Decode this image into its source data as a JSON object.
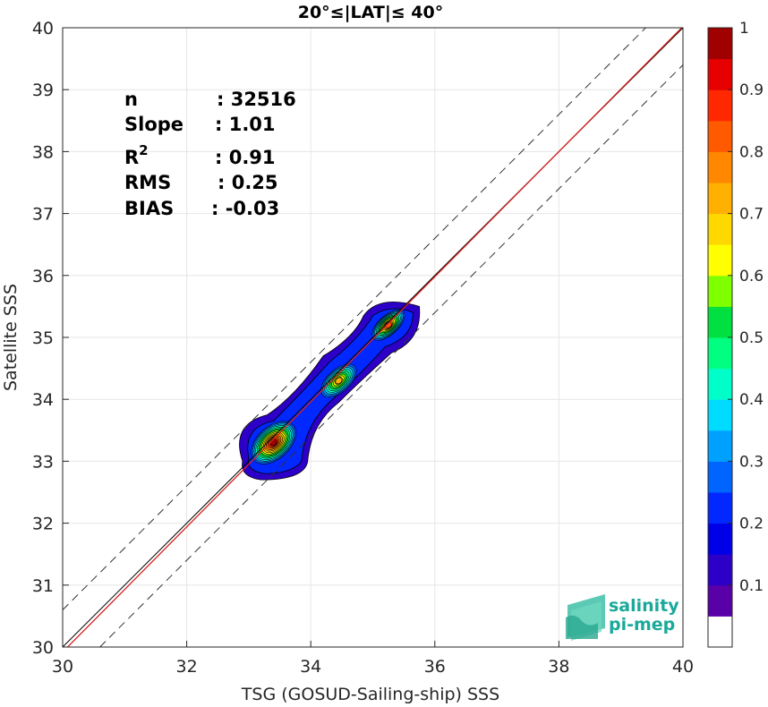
{
  "chart_data": {
    "type": "contour",
    "title": "20°≤|LAT|≤ 40°",
    "xlabel": "TSG (GOSUD-Sailing-ship) SSS",
    "ylabel": "Satellite SSS",
    "xlim": [
      30,
      40
    ],
    "ylim": [
      30,
      40
    ],
    "xticks": [
      "30",
      "32",
      "34",
      "36",
      "38",
      "40"
    ],
    "yticks": [
      "30",
      "31",
      "32",
      "33",
      "34",
      "35",
      "36",
      "37",
      "38",
      "39",
      "40"
    ],
    "grid": true,
    "reference_lines": {
      "identity": {
        "slope": 1,
        "intercept": 0,
        "color": "#000000"
      },
      "fit": {
        "slope": 1.01,
        "intercept": -0.03,
        "color": "#d62020"
      },
      "envelope_offset": 0.6,
      "envelope_style": "dashed"
    },
    "stats": [
      {
        "label": "n",
        "value": ": 32516"
      },
      {
        "label": "Slope",
        "value": ": 1.01"
      },
      {
        "label": "R",
        "sup": "2",
        "value": ": 0.91"
      },
      {
        "label": "RMS",
        "value": ": 0.25"
      },
      {
        "label": "BIAS",
        "value": ": -0.03"
      }
    ],
    "density_peaks": [
      {
        "x": 33.4,
        "y": 33.3,
        "density": 1.0,
        "rx": 0.45,
        "ry": 0.28
      },
      {
        "x": 34.45,
        "y": 34.3,
        "density": 0.75,
        "rx": 0.38,
        "ry": 0.2
      },
      {
        "x": 35.25,
        "y": 35.2,
        "density": 0.85,
        "rx": 0.35,
        "ry": 0.17
      }
    ],
    "colorbar": {
      "min": 0,
      "max": 1,
      "ticks": [
        "0.1",
        "0.2",
        "0.3",
        "0.4",
        "0.5",
        "0.6",
        "0.7",
        "0.8",
        "0.9",
        "1"
      ],
      "levels": [
        "#ffffff",
        "#5a00a8",
        "#2d00c8",
        "#0000e8",
        "#0028ff",
        "#0064ff",
        "#00a0ff",
        "#00dcff",
        "#00ffc8",
        "#00ff80",
        "#00e040",
        "#80ff00",
        "#ffff00",
        "#ffd800",
        "#ffb000",
        "#ff8800",
        "#ff5a00",
        "#ff2800",
        "#e60000",
        "#a00000"
      ]
    }
  },
  "logo": {
    "line1": "salinity",
    "line2": "pi-mep"
  }
}
